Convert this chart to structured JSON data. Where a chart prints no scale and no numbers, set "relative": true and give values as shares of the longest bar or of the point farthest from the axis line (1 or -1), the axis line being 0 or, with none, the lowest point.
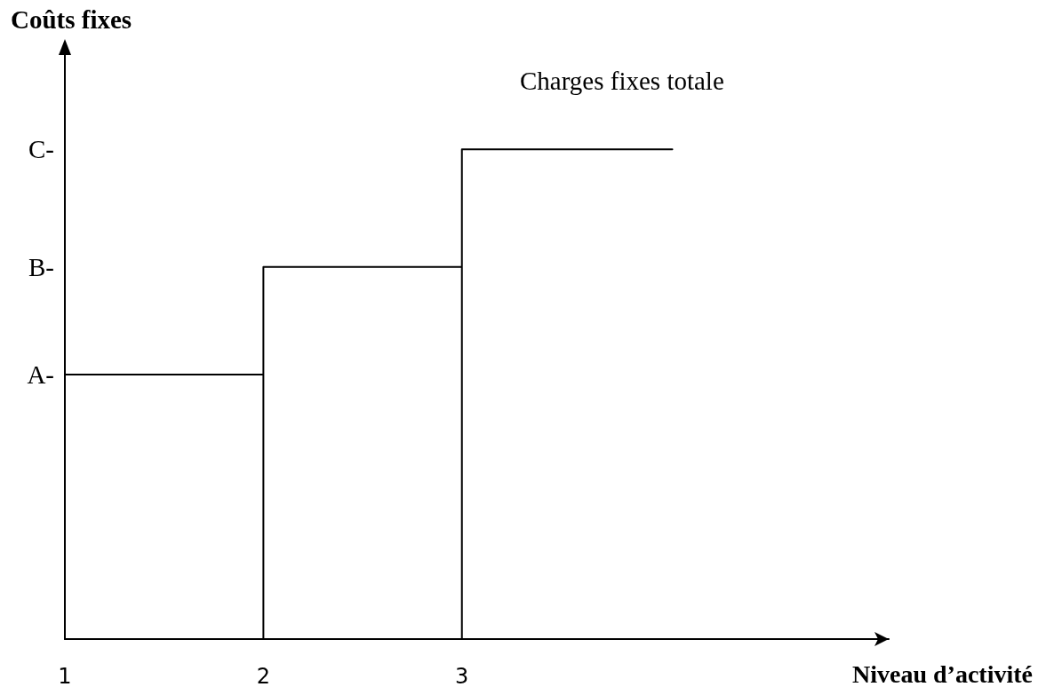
{
  "chart_data": {
    "type": "line",
    "ylabel": "Coûts fixes",
    "xlabel": "Niveau d’activité",
    "annotations": [
      "Charges fixes totale",
      "A-",
      "B-",
      "C-"
    ],
    "relative": true,
    "x": [
      1,
      2,
      2,
      2,
      3,
      3,
      3,
      4.06
    ],
    "series": [
      {
        "color": "#000000",
        "values": [
          0.54,
          0.54,
          0,
          0.76,
          0.76,
          0,
          1,
          1
        ]
      }
    ],
    "xlim": [
      1,
      5.15
    ],
    "xticks": [
      1,
      2,
      3
    ],
    "grid": false,
    "marker": "none",
    "line_style": "solid"
  }
}
